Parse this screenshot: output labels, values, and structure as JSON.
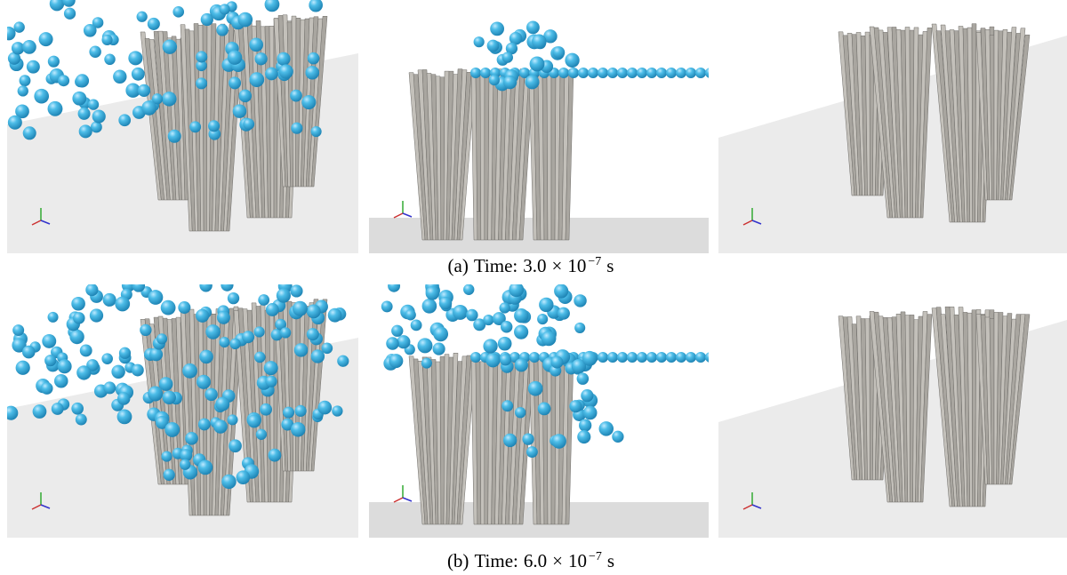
{
  "captions": [
    {
      "label": "(a)",
      "text": "Time:",
      "mantissa": "3.0",
      "times": "×",
      "base": "10",
      "exponent": "−7",
      "unit": "s"
    },
    {
      "label": "(b)",
      "text": "Time:",
      "mantissa": "6.0",
      "times": "×",
      "base": "10",
      "exponent": "−7",
      "unit": "s"
    }
  ]
}
